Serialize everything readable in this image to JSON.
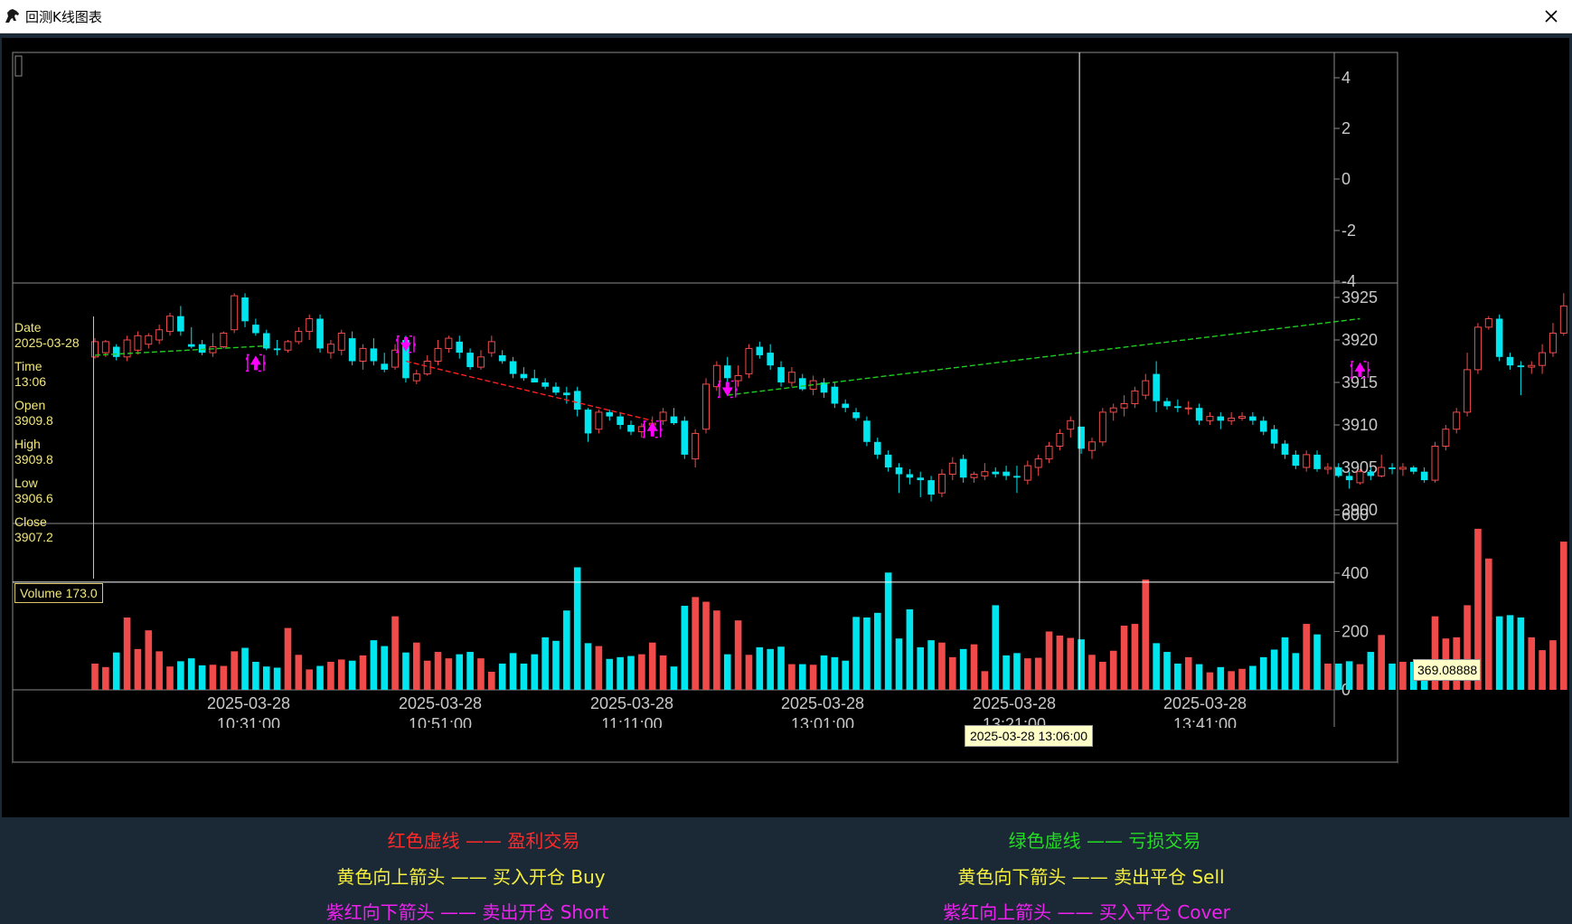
{
  "window": {
    "title": "回测K线图表"
  },
  "icons": {
    "app": "horse-icon",
    "close": "close-icon"
  },
  "info_panel": {
    "date_label": "Date",
    "date_value": "2025-03-28",
    "time_label": "Time",
    "time_value": "13:06",
    "open_label": "Open",
    "open_value": "3909.8",
    "high_label": "High",
    "high_value": "3909.8",
    "low_label": "Low",
    "low_value": "3906.6",
    "close_label": "Close",
    "close_value": "3907.2"
  },
  "volume_label": "Volume 173.0",
  "crosshair": {
    "time_tooltip": "2025-03-28 13:06:00",
    "volume_tooltip": "369.08888"
  },
  "top_axis_ticks": [
    "4",
    "2",
    "0",
    "-2",
    "-4"
  ],
  "price_axis_ticks": [
    "3925",
    "3920",
    "3915",
    "3910",
    "3905",
    "3900"
  ],
  "volume_axis_ticks": [
    "600",
    "400",
    "200",
    "0"
  ],
  "x_axis": [
    {
      "date": "2025-03-28",
      "time": "10:31:00"
    },
    {
      "date": "2025-03-28",
      "time": "10:51:00"
    },
    {
      "date": "2025-03-28",
      "time": "11:11:00"
    },
    {
      "date": "2025-03-28",
      "time": "13:01:00"
    },
    {
      "date": "2025-03-28",
      "time": "13:21:00"
    },
    {
      "date": "2025-03-28",
      "time": "13:41:00"
    }
  ],
  "legend": {
    "profit": "红色虚线 —— 盈利交易",
    "loss": "绿色虚线 —— 亏损交易",
    "buy": "黄色向上箭头 —— 买入开仓 Buy",
    "sell": "黄色向下箭头 —— 卖出平仓 Sell",
    "short": "紫红向下箭头 —— 卖出开仓 Short",
    "cover": "紫红向上箭头 —— 买入平仓 Cover"
  },
  "colors": {
    "up": "#ef4b4b",
    "down": "#00e5ee",
    "profit": "#ff2020",
    "loss": "#20cc20",
    "marker": "#ff00ff",
    "axis_text": "#c8c8c8",
    "legend_red": "#ff2a2a",
    "legend_green": "#22dd22",
    "legend_yellow": "#f5f040",
    "legend_magenta": "#ee22ee"
  },
  "chart_data": {
    "type": "candlestick",
    "price_ylim": [
      3900,
      3925
    ],
    "volume_ylim": [
      0,
      600
    ],
    "crosshair_index": 92,
    "crosshair_volume": 369.08888,
    "candles": [
      {
        "o": 3918,
        "h": 3920.2,
        "l": 3917.8,
        "c": 3919.8,
        "v": 90
      },
      {
        "o": 3918.5,
        "h": 3920,
        "l": 3918,
        "c": 3919.8,
        "v": 78
      },
      {
        "o": 3919.2,
        "h": 3919.5,
        "l": 3917.6,
        "c": 3918,
        "v": 128
      },
      {
        "o": 3918,
        "h": 3920.5,
        "l": 3917.5,
        "c": 3920,
        "v": 248
      },
      {
        "o": 3918.8,
        "h": 3921,
        "l": 3918.3,
        "c": 3920.5,
        "v": 140
      },
      {
        "o": 3919.5,
        "h": 3920.8,
        "l": 3919,
        "c": 3920.5,
        "v": 204
      },
      {
        "o": 3920,
        "h": 3921.8,
        "l": 3919.5,
        "c": 3921.2,
        "v": 132
      },
      {
        "o": 3921,
        "h": 3923.2,
        "l": 3920.5,
        "c": 3922.8,
        "v": 80
      },
      {
        "o": 3922.8,
        "h": 3924,
        "l": 3920.5,
        "c": 3921,
        "v": 98
      },
      {
        "o": 3919.5,
        "h": 3921.5,
        "l": 3919,
        "c": 3919.2,
        "v": 108
      },
      {
        "o": 3919.5,
        "h": 3920,
        "l": 3918.2,
        "c": 3918.5,
        "v": 84
      },
      {
        "o": 3918.5,
        "h": 3920.8,
        "l": 3918,
        "c": 3919.2,
        "v": 86
      },
      {
        "o": 3919.2,
        "h": 3921,
        "l": 3919,
        "c": 3920.8,
        "v": 82
      },
      {
        "o": 3921.2,
        "h": 3925.5,
        "l": 3920.8,
        "c": 3925.2,
        "v": 132
      },
      {
        "o": 3925,
        "h": 3925.5,
        "l": 3921.5,
        "c": 3922.2,
        "v": 144
      },
      {
        "o": 3921.8,
        "h": 3922.5,
        "l": 3920.5,
        "c": 3920.8,
        "v": 96
      },
      {
        "o": 3920.8,
        "h": 3921.2,
        "l": 3918.8,
        "c": 3919,
        "v": 80
      },
      {
        "o": 3919,
        "h": 3920,
        "l": 3918.2,
        "c": 3918.8,
        "v": 76
      },
      {
        "o": 3918.8,
        "h": 3920,
        "l": 3918.5,
        "c": 3919.8,
        "v": 212
      },
      {
        "o": 3919.8,
        "h": 3921.5,
        "l": 3919.5,
        "c": 3921,
        "v": 120
      },
      {
        "o": 3921,
        "h": 3923,
        "l": 3920,
        "c": 3922.5,
        "v": 70
      },
      {
        "o": 3922.5,
        "h": 3923,
        "l": 3918.5,
        "c": 3919,
        "v": 82
      },
      {
        "o": 3918.5,
        "h": 3920,
        "l": 3917.8,
        "c": 3919.5,
        "v": 96
      },
      {
        "o": 3918.8,
        "h": 3921.2,
        "l": 3918.2,
        "c": 3920.8,
        "v": 104
      },
      {
        "o": 3920.2,
        "h": 3921,
        "l": 3917,
        "c": 3917.5,
        "v": 100
      },
      {
        "o": 3917.5,
        "h": 3919.5,
        "l": 3916.5,
        "c": 3919,
        "v": 118
      },
      {
        "o": 3919,
        "h": 3920.2,
        "l": 3917,
        "c": 3917.5,
        "v": 170
      },
      {
        "o": 3917.2,
        "h": 3918.5,
        "l": 3916.2,
        "c": 3916.5,
        "v": 150
      },
      {
        "o": 3916.8,
        "h": 3919.5,
        "l": 3916.5,
        "c": 3918.8,
        "v": 252
      },
      {
        "o": 3920,
        "h": 3920.5,
        "l": 3915,
        "c": 3915.5,
        "v": 128
      },
      {
        "o": 3915.2,
        "h": 3916.5,
        "l": 3914.8,
        "c": 3916,
        "v": 162
      },
      {
        "o": 3916,
        "h": 3918.2,
        "l": 3915.8,
        "c": 3917.5,
        "v": 100
      },
      {
        "o": 3917.5,
        "h": 3920,
        "l": 3917,
        "c": 3919,
        "v": 130
      },
      {
        "o": 3919,
        "h": 3920.5,
        "l": 3918.5,
        "c": 3920.2,
        "v": 108
      },
      {
        "o": 3919.8,
        "h": 3920.5,
        "l": 3917.8,
        "c": 3918.5,
        "v": 122
      },
      {
        "o": 3918.5,
        "h": 3919,
        "l": 3916.5,
        "c": 3916.8,
        "v": 130
      },
      {
        "o": 3916.8,
        "h": 3918.8,
        "l": 3916.5,
        "c": 3918,
        "v": 108
      },
      {
        "o": 3918.5,
        "h": 3920.5,
        "l": 3918,
        "c": 3919.8,
        "v": 62
      },
      {
        "o": 3918.2,
        "h": 3918.8,
        "l": 3917.2,
        "c": 3917.5,
        "v": 90
      },
      {
        "o": 3917.5,
        "h": 3918,
        "l": 3915.5,
        "c": 3916,
        "v": 126
      },
      {
        "o": 3916,
        "h": 3916.8,
        "l": 3915.2,
        "c": 3915.5,
        "v": 90
      },
      {
        "o": 3915.5,
        "h": 3916.5,
        "l": 3915,
        "c": 3915,
        "v": 122
      },
      {
        "o": 3915,
        "h": 3915.5,
        "l": 3914.2,
        "c": 3914.5,
        "v": 180
      },
      {
        "o": 3914.5,
        "h": 3915,
        "l": 3913.5,
        "c": 3913.8,
        "v": 168
      },
      {
        "o": 3913.8,
        "h": 3914.5,
        "l": 3912.5,
        "c": 3913.5,
        "v": 272
      },
      {
        "o": 3914,
        "h": 3914.5,
        "l": 3911,
        "c": 3911.8,
        "v": 420
      },
      {
        "o": 3911.8,
        "h": 3912,
        "l": 3908,
        "c": 3909,
        "v": 160
      },
      {
        "o": 3909.5,
        "h": 3911.8,
        "l": 3909,
        "c": 3911.5,
        "v": 150
      },
      {
        "o": 3911.5,
        "h": 3911.8,
        "l": 3910.5,
        "c": 3911,
        "v": 106
      },
      {
        "o": 3911,
        "h": 3911.5,
        "l": 3909.5,
        "c": 3910,
        "v": 112
      },
      {
        "o": 3910,
        "h": 3910.5,
        "l": 3908.8,
        "c": 3909.2,
        "v": 116
      },
      {
        "o": 3909.2,
        "h": 3910.2,
        "l": 3908.5,
        "c": 3909.8,
        "v": 122
      },
      {
        "o": 3910,
        "h": 3911,
        "l": 3909.5,
        "c": 3910.2,
        "v": 162
      },
      {
        "o": 3910.5,
        "h": 3912,
        "l": 3910,
        "c": 3911.5,
        "v": 118
      },
      {
        "o": 3911,
        "h": 3912,
        "l": 3910,
        "c": 3910.2,
        "v": 80
      },
      {
        "o": 3910.5,
        "h": 3911,
        "l": 3906,
        "c": 3906.5,
        "v": 288
      },
      {
        "o": 3906,
        "h": 3909.5,
        "l": 3905,
        "c": 3909,
        "v": 318
      },
      {
        "o": 3909.5,
        "h": 3915.5,
        "l": 3909,
        "c": 3914.8,
        "v": 302
      },
      {
        "o": 3914.5,
        "h": 3917.5,
        "l": 3914,
        "c": 3917,
        "v": 272
      },
      {
        "o": 3917,
        "h": 3918,
        "l": 3915,
        "c": 3915.5,
        "v": 122
      },
      {
        "o": 3915.2,
        "h": 3917,
        "l": 3914.5,
        "c": 3915.8,
        "v": 238
      },
      {
        "o": 3916,
        "h": 3919.5,
        "l": 3915.5,
        "c": 3919,
        "v": 120
      },
      {
        "o": 3919.2,
        "h": 3919.8,
        "l": 3917.8,
        "c": 3918.2,
        "v": 146
      },
      {
        "o": 3918.5,
        "h": 3919.5,
        "l": 3916.5,
        "c": 3917,
        "v": 140
      },
      {
        "o": 3916.8,
        "h": 3917.5,
        "l": 3914.5,
        "c": 3915,
        "v": 148
      },
      {
        "o": 3915,
        "h": 3916.8,
        "l": 3914.5,
        "c": 3916.2,
        "v": 88
      },
      {
        "o": 3915.5,
        "h": 3916,
        "l": 3914,
        "c": 3914.2,
        "v": 88
      },
      {
        "o": 3914.2,
        "h": 3915.8,
        "l": 3913.5,
        "c": 3915.2,
        "v": 86
      },
      {
        "o": 3915,
        "h": 3915.5,
        "l": 3913.2,
        "c": 3913.8,
        "v": 118
      },
      {
        "o": 3914.5,
        "h": 3915,
        "l": 3912,
        "c": 3912.5,
        "v": 112
      },
      {
        "o": 3912.5,
        "h": 3913,
        "l": 3911.5,
        "c": 3912,
        "v": 100
      },
      {
        "o": 3911.5,
        "h": 3912,
        "l": 3910.5,
        "c": 3910.8,
        "v": 250
      },
      {
        "o": 3910.5,
        "h": 3911,
        "l": 3907.5,
        "c": 3908,
        "v": 248
      },
      {
        "o": 3908,
        "h": 3908.5,
        "l": 3906,
        "c": 3906.5,
        "v": 264
      },
      {
        "o": 3906.5,
        "h": 3907,
        "l": 3904.5,
        "c": 3905,
        "v": 402
      },
      {
        "o": 3905,
        "h": 3905.5,
        "l": 3902,
        "c": 3904.2,
        "v": 176
      },
      {
        "o": 3904.2,
        "h": 3904.8,
        "l": 3903,
        "c": 3903.8,
        "v": 276
      },
      {
        "o": 3903.8,
        "h": 3904.5,
        "l": 3901.5,
        "c": 3903.5,
        "v": 146
      },
      {
        "o": 3903.5,
        "h": 3904,
        "l": 3901,
        "c": 3901.8,
        "v": 170
      },
      {
        "o": 3902,
        "h": 3904.8,
        "l": 3901.5,
        "c": 3904.2,
        "v": 162
      },
      {
        "o": 3904.2,
        "h": 3906.2,
        "l": 3903.5,
        "c": 3905.5,
        "v": 112
      },
      {
        "o": 3906,
        "h": 3906.5,
        "l": 3903.2,
        "c": 3903.8,
        "v": 140
      },
      {
        "o": 3903.8,
        "h": 3904.5,
        "l": 3903.2,
        "c": 3904.2,
        "v": 156
      },
      {
        "o": 3904,
        "h": 3905.5,
        "l": 3903.5,
        "c": 3904.5,
        "v": 64
      },
      {
        "o": 3904.5,
        "h": 3905,
        "l": 3903.8,
        "c": 3904.2,
        "v": 290
      },
      {
        "o": 3904.5,
        "h": 3905.2,
        "l": 3903.5,
        "c": 3904,
        "v": 118
      },
      {
        "o": 3904,
        "h": 3905.2,
        "l": 3902,
        "c": 3903.8,
        "v": 126
      },
      {
        "o": 3903.5,
        "h": 3905.8,
        "l": 3903,
        "c": 3905.2,
        "v": 108
      },
      {
        "o": 3905,
        "h": 3906.5,
        "l": 3904,
        "c": 3906,
        "v": 110
      },
      {
        "o": 3906,
        "h": 3908,
        "l": 3905.5,
        "c": 3907.5,
        "v": 200
      },
      {
        "o": 3907.5,
        "h": 3909.5,
        "l": 3907,
        "c": 3909,
        "v": 186
      },
      {
        "o": 3909.5,
        "h": 3911,
        "l": 3908.5,
        "c": 3910.5,
        "v": 178
      },
      {
        "o": 3909.8,
        "h": 3909.8,
        "l": 3906.6,
        "c": 3907.2,
        "v": 173
      },
      {
        "o": 3907,
        "h": 3908.5,
        "l": 3906,
        "c": 3908,
        "v": 120
      },
      {
        "o": 3908,
        "h": 3912,
        "l": 3907.5,
        "c": 3911.5,
        "v": 96
      },
      {
        "o": 3911.5,
        "h": 3912.5,
        "l": 3910.5,
        "c": 3912,
        "v": 134
      },
      {
        "o": 3912,
        "h": 3913.5,
        "l": 3911,
        "c": 3912.5,
        "v": 220
      },
      {
        "o": 3912.5,
        "h": 3914.5,
        "l": 3912,
        "c": 3914,
        "v": 226
      },
      {
        "o": 3913.5,
        "h": 3916,
        "l": 3913,
        "c": 3915.2,
        "v": 378
      },
      {
        "o": 3916,
        "h": 3917.5,
        "l": 3911.5,
        "c": 3912.8,
        "v": 160
      },
      {
        "o": 3912.8,
        "h": 3913.2,
        "l": 3911.8,
        "c": 3912.2,
        "v": 130
      },
      {
        "o": 3912.2,
        "h": 3913,
        "l": 3911.5,
        "c": 3912,
        "v": 90
      },
      {
        "o": 3912,
        "h": 3912.8,
        "l": 3911.2,
        "c": 3912,
        "v": 112
      },
      {
        "o": 3912,
        "h": 3912.5,
        "l": 3910,
        "c": 3910.5,
        "v": 88
      },
      {
        "o": 3910.5,
        "h": 3911.5,
        "l": 3910,
        "c": 3911,
        "v": 60
      },
      {
        "o": 3911,
        "h": 3911.5,
        "l": 3909.5,
        "c": 3910.5,
        "v": 78
      },
      {
        "o": 3910.5,
        "h": 3911.5,
        "l": 3910,
        "c": 3910.8,
        "v": 64
      },
      {
        "o": 3910.8,
        "h": 3911.5,
        "l": 3910.5,
        "c": 3911,
        "v": 72
      },
      {
        "o": 3911,
        "h": 3911.5,
        "l": 3910,
        "c": 3910.5,
        "v": 82
      },
      {
        "o": 3910.5,
        "h": 3911,
        "l": 3908.8,
        "c": 3909.2,
        "v": 112
      },
      {
        "o": 3909.5,
        "h": 3910,
        "l": 3907.2,
        "c": 3907.8,
        "v": 138
      },
      {
        "o": 3907.8,
        "h": 3908.2,
        "l": 3906,
        "c": 3906.5,
        "v": 180
      },
      {
        "o": 3906.5,
        "h": 3907,
        "l": 3904.8,
        "c": 3905.2,
        "v": 126
      },
      {
        "o": 3905,
        "h": 3907,
        "l": 3904.5,
        "c": 3906.5,
        "v": 226
      },
      {
        "o": 3906.5,
        "h": 3907,
        "l": 3904.5,
        "c": 3904.8,
        "v": 190
      },
      {
        "o": 3904.8,
        "h": 3905.5,
        "l": 3904.2,
        "c": 3905,
        "v": 90
      },
      {
        "o": 3905,
        "h": 3905.5,
        "l": 3903.8,
        "c": 3904,
        "v": 90
      },
      {
        "o": 3904,
        "h": 3904.5,
        "l": 3902.5,
        "c": 3903.5,
        "v": 98
      },
      {
        "o": 3903.2,
        "h": 3904.8,
        "l": 3903,
        "c": 3904.5,
        "v": 88
      },
      {
        "o": 3904.5,
        "h": 3905,
        "l": 3903.5,
        "c": 3904,
        "v": 130
      },
      {
        "o": 3904,
        "h": 3906.5,
        "l": 3903.8,
        "c": 3905,
        "v": 188
      },
      {
        "o": 3905,
        "h": 3905.5,
        "l": 3904.2,
        "c": 3904.8,
        "v": 90
      },
      {
        "o": 3904.8,
        "h": 3905.5,
        "l": 3904,
        "c": 3905,
        "v": 96
      },
      {
        "o": 3905,
        "h": 3905.2,
        "l": 3904.2,
        "c": 3904.5,
        "v": 96
      },
      {
        "o": 3904.5,
        "h": 3905,
        "l": 3903.2,
        "c": 3903.5,
        "v": 98
      },
      {
        "o": 3903.5,
        "h": 3908,
        "l": 3903.2,
        "c": 3907.5,
        "v": 252
      },
      {
        "o": 3907.5,
        "h": 3910,
        "l": 3907,
        "c": 3909.5,
        "v": 176
      },
      {
        "o": 3909.5,
        "h": 3912,
        "l": 3909,
        "c": 3911.5,
        "v": 180
      },
      {
        "o": 3911.5,
        "h": 3918.5,
        "l": 3911,
        "c": 3916.5,
        "v": 290
      },
      {
        "o": 3916.5,
        "h": 3922,
        "l": 3916,
        "c": 3921.5,
        "v": 552
      },
      {
        "o": 3921.5,
        "h": 3922.8,
        "l": 3921.2,
        "c": 3922.5,
        "v": 450
      },
      {
        "o": 3922.5,
        "h": 3923,
        "l": 3917.5,
        "c": 3918,
        "v": 252
      },
      {
        "o": 3918,
        "h": 3918.5,
        "l": 3916.5,
        "c": 3917,
        "v": 256
      },
      {
        "o": 3917,
        "h": 3917.5,
        "l": 3913.5,
        "c": 3916.8,
        "v": 248
      },
      {
        "o": 3916.8,
        "h": 3917.5,
        "l": 3916,
        "c": 3917,
        "v": 180
      },
      {
        "o": 3917,
        "h": 3919.5,
        "l": 3916,
        "c": 3918.5,
        "v": 136
      },
      {
        "o": 3918.5,
        "h": 3922,
        "l": 3918,
        "c": 3920.8,
        "v": 170
      },
      {
        "o": 3920.8,
        "h": 3925.5,
        "l": 3920.5,
        "c": 3924,
        "v": 508
      },
      {
        "o": 3924.5,
        "h": 3925,
        "l": 3921,
        "c": 3921.5,
        "v": 200
      },
      {
        "o": 3921.5,
        "h": 3922,
        "l": 3919.5,
        "c": 3920,
        "v": 132
      },
      {
        "o": 3920,
        "h": 3920.5,
        "l": 3915.5,
        "c": 3916,
        "v": 128
      }
    ],
    "trade_lines": [
      {
        "type": "loss",
        "from": [
          0,
          3918.2
        ],
        "to": [
          16,
          3919.3
        ]
      },
      {
        "type": "profit",
        "from": [
          29,
          3917.5
        ],
        "to": [
          52,
          3910.5
        ]
      },
      {
        "type": "loss",
        "from": [
          59,
          3913.5
        ],
        "to": [
          118,
          3922.5
        ]
      }
    ],
    "markers": [
      {
        "i": 15,
        "price": 3917.3,
        "dir": "up"
      },
      {
        "i": 29,
        "price": 3919.5,
        "dir": "down"
      },
      {
        "i": 52,
        "price": 3909.5,
        "dir": "up"
      },
      {
        "i": 59,
        "price": 3914.2,
        "dir": "down"
      },
      {
        "i": 118,
        "price": 3916.5,
        "dir": "up"
      }
    ]
  }
}
